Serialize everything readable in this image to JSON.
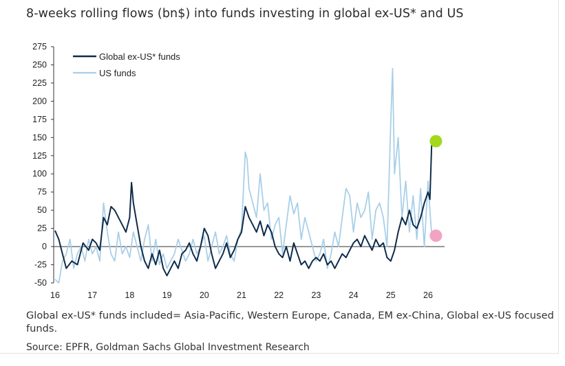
{
  "title": "8-weeks rolling flows (bn$) into funds investing in global ex-US* and US",
  "note": "Global ex-US* funds included= Asia-Pacific, Western Europe, Canada, EM ex-China, Global ex-US focused funds.",
  "source": "Source: EPFR, Goldman Sachs Global Investment Research",
  "chart_data": {
    "type": "line",
    "title": "8-weeks rolling flows (bn$) into funds investing in global ex-US* and US",
    "xlabel": "",
    "ylabel": "",
    "ylim": [
      -50,
      275
    ],
    "xlim": [
      16,
      26.3
    ],
    "x_ticks": [
      "16",
      "17",
      "18",
      "19",
      "20",
      "21",
      "22",
      "23",
      "24",
      "25",
      "26"
    ],
    "y_ticks": [
      "275",
      "250",
      "225",
      "200",
      "175",
      "150",
      "125",
      "100",
      "75",
      "50",
      "25",
      "0",
      "-25",
      "-50"
    ],
    "legend": "top-left",
    "grid": false,
    "series": [
      {
        "name": "Global ex-US* funds",
        "color": "#0d2b4a",
        "x": [
          16.0,
          16.1,
          16.2,
          16.3,
          16.45,
          16.6,
          16.75,
          16.9,
          17.0,
          17.1,
          17.2,
          17.3,
          17.4,
          17.5,
          17.6,
          17.7,
          17.8,
          17.9,
          18.0,
          18.05,
          18.1,
          18.2,
          18.3,
          18.4,
          18.5,
          18.6,
          18.7,
          18.8,
          18.9,
          19.0,
          19.1,
          19.2,
          19.3,
          19.4,
          19.5,
          19.6,
          19.7,
          19.8,
          19.9,
          20.0,
          20.1,
          20.2,
          20.3,
          20.4,
          20.5,
          20.6,
          20.7,
          20.8,
          20.9,
          21.0,
          21.1,
          21.2,
          21.3,
          21.4,
          21.5,
          21.6,
          21.7,
          21.8,
          21.9,
          22.0,
          22.1,
          22.2,
          22.3,
          22.4,
          22.5,
          22.6,
          22.7,
          22.8,
          22.9,
          23.0,
          23.1,
          23.2,
          23.3,
          23.4,
          23.5,
          23.6,
          23.7,
          23.8,
          23.9,
          24.0,
          24.1,
          24.2,
          24.3,
          24.4,
          24.5,
          24.6,
          24.7,
          24.8,
          24.9,
          25.0,
          25.1,
          25.2,
          25.3,
          25.4,
          25.5,
          25.6,
          25.7,
          25.8,
          25.9,
          26.0,
          26.05,
          26.1
        ],
        "values": [
          22,
          10,
          -10,
          -30,
          -20,
          -25,
          5,
          -5,
          10,
          5,
          -5,
          40,
          30,
          55,
          50,
          40,
          30,
          20,
          40,
          88,
          60,
          30,
          0,
          -20,
          -30,
          -10,
          -25,
          -5,
          -30,
          -40,
          -30,
          -20,
          -30,
          -10,
          -5,
          5,
          -10,
          -20,
          0,
          25,
          15,
          -10,
          -30,
          -20,
          -10,
          5,
          -15,
          -5,
          10,
          20,
          55,
          40,
          30,
          20,
          35,
          15,
          30,
          20,
          0,
          -10,
          -15,
          0,
          -20,
          5,
          -10,
          -25,
          -20,
          -30,
          -20,
          -15,
          -20,
          -10,
          -25,
          -20,
          -30,
          -20,
          -10,
          -15,
          -5,
          5,
          10,
          0,
          15,
          5,
          -5,
          10,
          0,
          5,
          -15,
          -20,
          -5,
          20,
          40,
          30,
          50,
          30,
          25,
          40,
          60,
          75,
          65,
          145
        ]
      },
      {
        "name": "US funds",
        "color": "#a9cfe8",
        "x": [
          16.0,
          16.1,
          16.2,
          16.3,
          16.4,
          16.5,
          16.6,
          16.7,
          16.8,
          16.9,
          17.0,
          17.1,
          17.2,
          17.3,
          17.4,
          17.5,
          17.6,
          17.7,
          17.8,
          17.9,
          18.0,
          18.1,
          18.2,
          18.3,
          18.4,
          18.5,
          18.6,
          18.7,
          18.8,
          18.9,
          19.0,
          19.1,
          19.2,
          19.3,
          19.4,
          19.5,
          19.6,
          19.7,
          19.8,
          19.9,
          20.0,
          20.1,
          20.2,
          20.3,
          20.4,
          20.5,
          20.6,
          20.7,
          20.8,
          20.9,
          21.0,
          21.1,
          21.15,
          21.2,
          21.3,
          21.4,
          21.5,
          21.6,
          21.7,
          21.8,
          21.9,
          22.0,
          22.1,
          22.2,
          22.3,
          22.4,
          22.5,
          22.6,
          22.7,
          22.8,
          22.9,
          23.0,
          23.1,
          23.2,
          23.3,
          23.4,
          23.5,
          23.6,
          23.7,
          23.8,
          23.9,
          24.0,
          24.1,
          24.2,
          24.3,
          24.4,
          24.5,
          24.6,
          24.7,
          24.8,
          24.9,
          25.0,
          25.05,
          25.1,
          25.2,
          25.3,
          25.4,
          25.5,
          25.6,
          25.7,
          25.8,
          25.9,
          26.0,
          26.05,
          26.1
        ],
        "values": [
          -45,
          -50,
          -20,
          -10,
          10,
          -30,
          -10,
          0,
          -20,
          10,
          -10,
          0,
          -20,
          60,
          20,
          -10,
          -20,
          20,
          -10,
          0,
          -15,
          20,
          0,
          -20,
          10,
          30,
          -20,
          10,
          -25,
          -10,
          -30,
          -20,
          -10,
          10,
          -5,
          -20,
          -10,
          10,
          -10,
          0,
          15,
          -20,
          0,
          20,
          -10,
          0,
          15,
          -10,
          -20,
          10,
          25,
          130,
          120,
          80,
          60,
          40,
          100,
          50,
          60,
          10,
          30,
          40,
          -10,
          30,
          70,
          45,
          60,
          10,
          40,
          20,
          0,
          -20,
          -10,
          10,
          -30,
          -10,
          20,
          0,
          40,
          80,
          70,
          20,
          60,
          40,
          50,
          75,
          10,
          50,
          60,
          40,
          0,
          170,
          245,
          100,
          150,
          40,
          90,
          20,
          70,
          10,
          80,
          0,
          90,
          50,
          15
        ]
      }
    ],
    "markers": [
      {
        "series": "Global ex-US* funds",
        "x": 26.1,
        "y": 145,
        "color": "#a3d81d"
      },
      {
        "series": "US funds",
        "x": 26.1,
        "y": 15,
        "color": "#f2a3c2"
      }
    ]
  }
}
